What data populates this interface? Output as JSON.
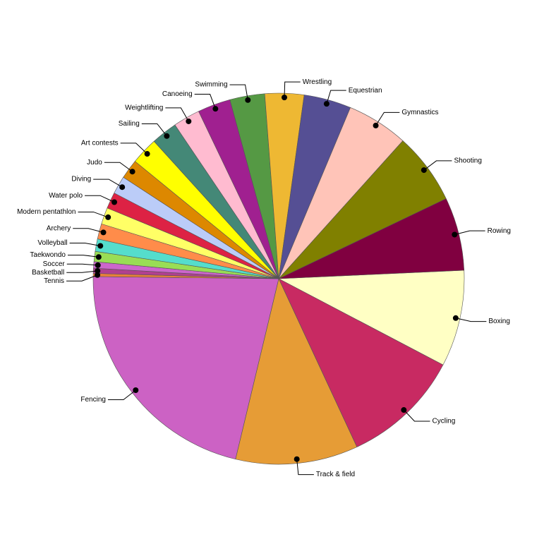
{
  "chart_data": {
    "type": "pie",
    "categories": [
      "Boxing",
      "Cycling",
      "Track & field",
      "Fencing",
      "Tennis",
      "Basketball",
      "Soccer",
      "Taekwondo",
      "Volleyball",
      "Archery",
      "Modern pentathlon",
      "Water polo",
      "Diving",
      "Judo",
      "Art contests",
      "Sailing",
      "Weightlifting",
      "Canoeing",
      "Swimming",
      "Wrestling",
      "Equestrian",
      "Gymnastics",
      "Shooting",
      "Rowing"
    ],
    "values": [
      30.2,
      37.3,
      38.3,
      77,
      1,
      1.6,
      2,
      3.2,
      3.9,
      4.8,
      5.2,
      5.1,
      5.6,
      6.1,
      8.5,
      8.2,
      8.4,
      10.3,
      10.9,
      12.2,
      14.8,
      19.2,
      22.4,
      22.9
    ],
    "colors": [
      "#ffffc4",
      "#c82a62",
      "#e69c36",
      "#cc62c4",
      "#e8803a",
      "#b04090",
      "#cc66cc",
      "#99dd55",
      "#55ddcc",
      "#ff8c4a",
      "#ffff66",
      "#dd2244",
      "#bbccf8",
      "#dd8800",
      "#ffff00",
      "#448877",
      "#ffbbd0",
      "#a02090",
      "#559944",
      "#eeb833",
      "#554f94",
      "#ffc4b8",
      "#808000",
      "#800040"
    ]
  }
}
